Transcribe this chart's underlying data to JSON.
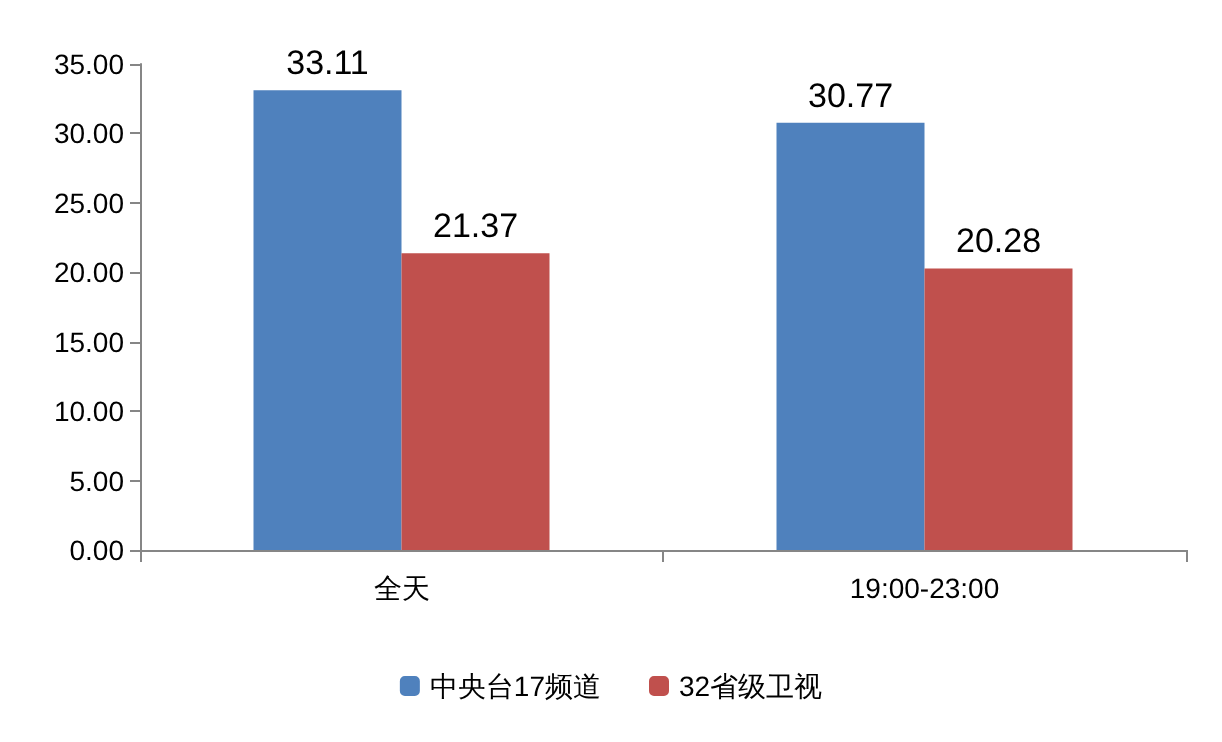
{
  "chart_data": {
    "type": "bar",
    "categories": [
      "全天",
      "19:00-23:00"
    ],
    "series": [
      {
        "name": "中央台17频道",
        "color": "#4f81bd",
        "values": [
          33.11,
          30.77
        ]
      },
      {
        "name": "32省级卫视",
        "color": "#c0504d",
        "values": [
          21.37,
          20.28
        ]
      }
    ],
    "ylim": [
      0,
      35
    ],
    "yticks": [
      "0.00",
      "5.00",
      "10.00",
      "15.00",
      "20.00",
      "25.00",
      "30.00",
      "35.00"
    ],
    "data_labels": true,
    "legend": "bottom",
    "grid": false
  }
}
